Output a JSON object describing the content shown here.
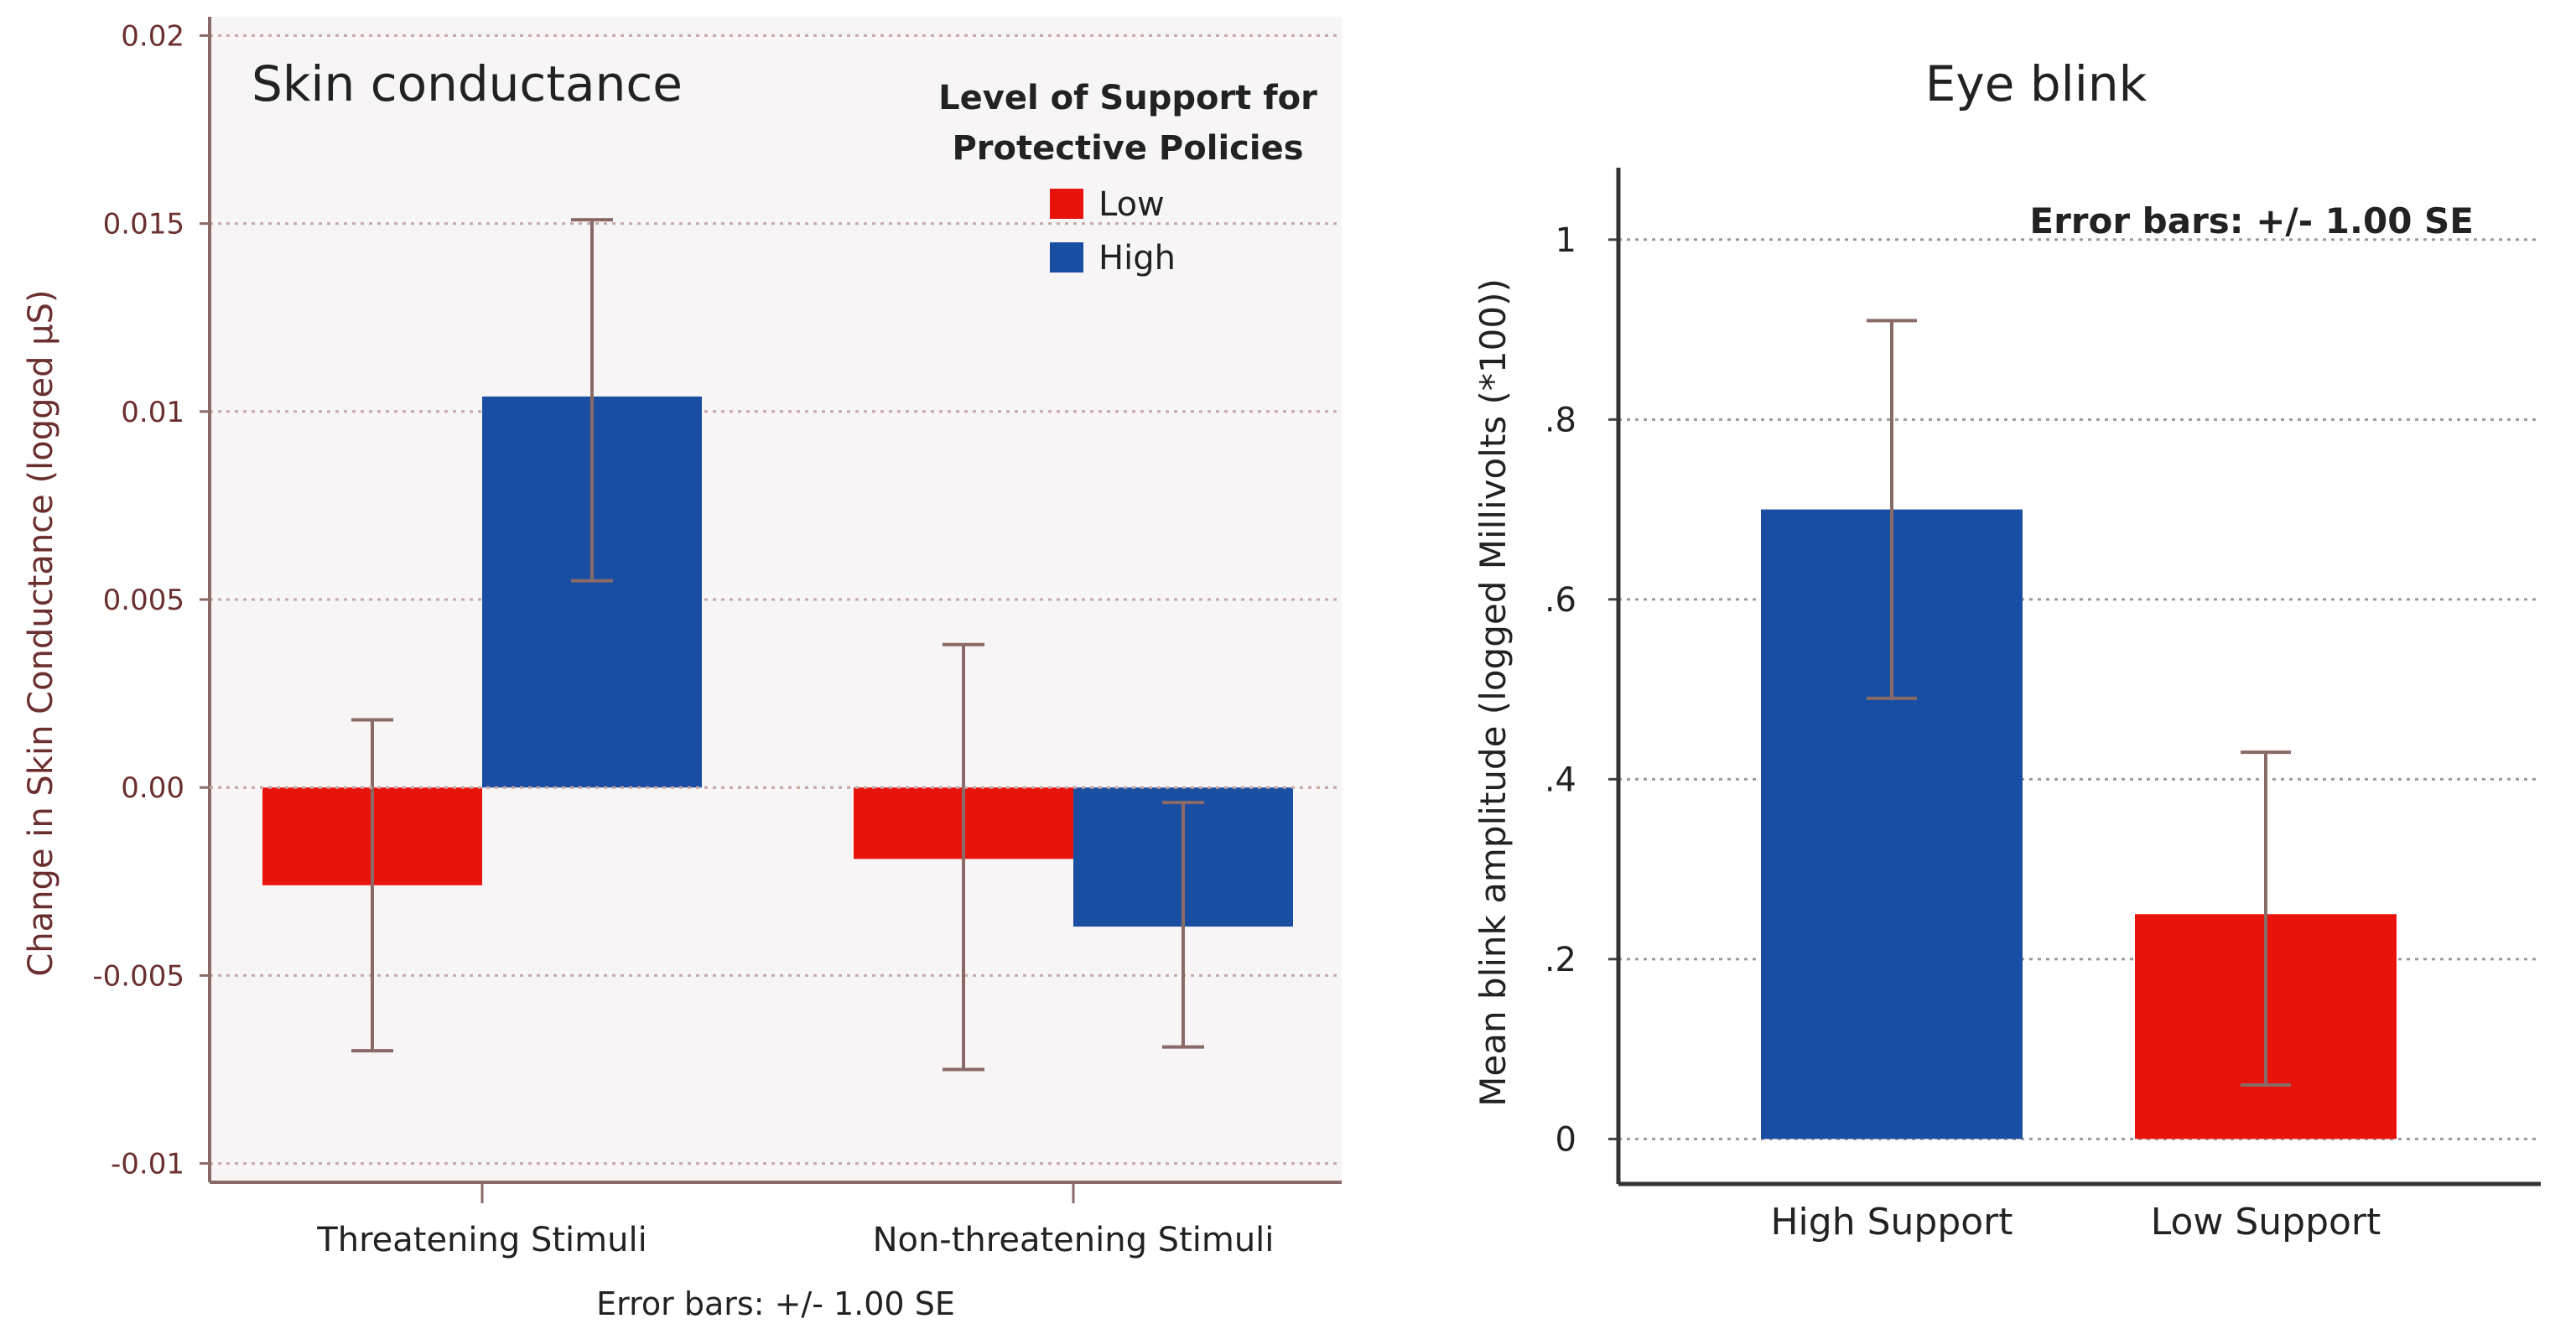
{
  "colors": {
    "low": "#e8140c",
    "high": "#1a4ea3",
    "axis": "#8a6a66",
    "text": "#6b2f2f",
    "grid": "#c8a8a4",
    "title": "#222222",
    "error": "#8a6a66"
  },
  "chart_data": [
    {
      "type": "bar",
      "title": "Skin conductance",
      "xlabel": "Error bars: +/- 1.00 SE",
      "ylabel": "Change in Skin Conductance (logged µS)",
      "ylim": [
        -0.0105,
        0.0205
      ],
      "yticks": [
        0.02,
        0.015,
        0.01,
        0.005,
        0.0,
        -0.005,
        -0.01
      ],
      "ytick_labels": [
        "0.02",
        "0.015",
        "0.01",
        "0.005",
        "0.00",
        "-0.005",
        "-0.01"
      ],
      "categories": [
        "Threatening Stimuli",
        "Non-threatening Stimuli"
      ],
      "legend": {
        "title_line1": "Level of Support for",
        "title_line2": "Protective Policies",
        "position": "top-right"
      },
      "series": [
        {
          "name": "Low",
          "color": "#e8140c",
          "values": [
            -0.0026,
            -0.0019
          ],
          "err_low": [
            -0.007,
            -0.0075
          ],
          "err_high": [
            0.0018,
            0.0038
          ]
        },
        {
          "name": "High",
          "color": "#1a4ea3",
          "values": [
            0.0104,
            -0.0037
          ],
          "err_low": [
            0.0055,
            -0.0069
          ],
          "err_high": [
            0.0151,
            -0.0004
          ]
        }
      ]
    },
    {
      "type": "bar",
      "title": "Eye blink",
      "annotation": "Error bars: +/- 1.00 SE",
      "ylabel": "Mean blink amplitude (logged Millivolts (*100))",
      "ylim": [
        -0.05,
        1.08
      ],
      "yticks": [
        1,
        0.8,
        0.6,
        0.4,
        0.2,
        0
      ],
      "ytick_labels": [
        "1",
        ".8",
        ".6",
        ".4",
        ".2",
        "0"
      ],
      "categories": [
        "High Support",
        "Low Support"
      ],
      "values": [
        0.7,
        0.25
      ],
      "colors": [
        "#1a4ea3",
        "#e8140c"
      ],
      "err_low": [
        0.49,
        0.06
      ],
      "err_high": [
        0.91,
        0.43
      ]
    }
  ]
}
